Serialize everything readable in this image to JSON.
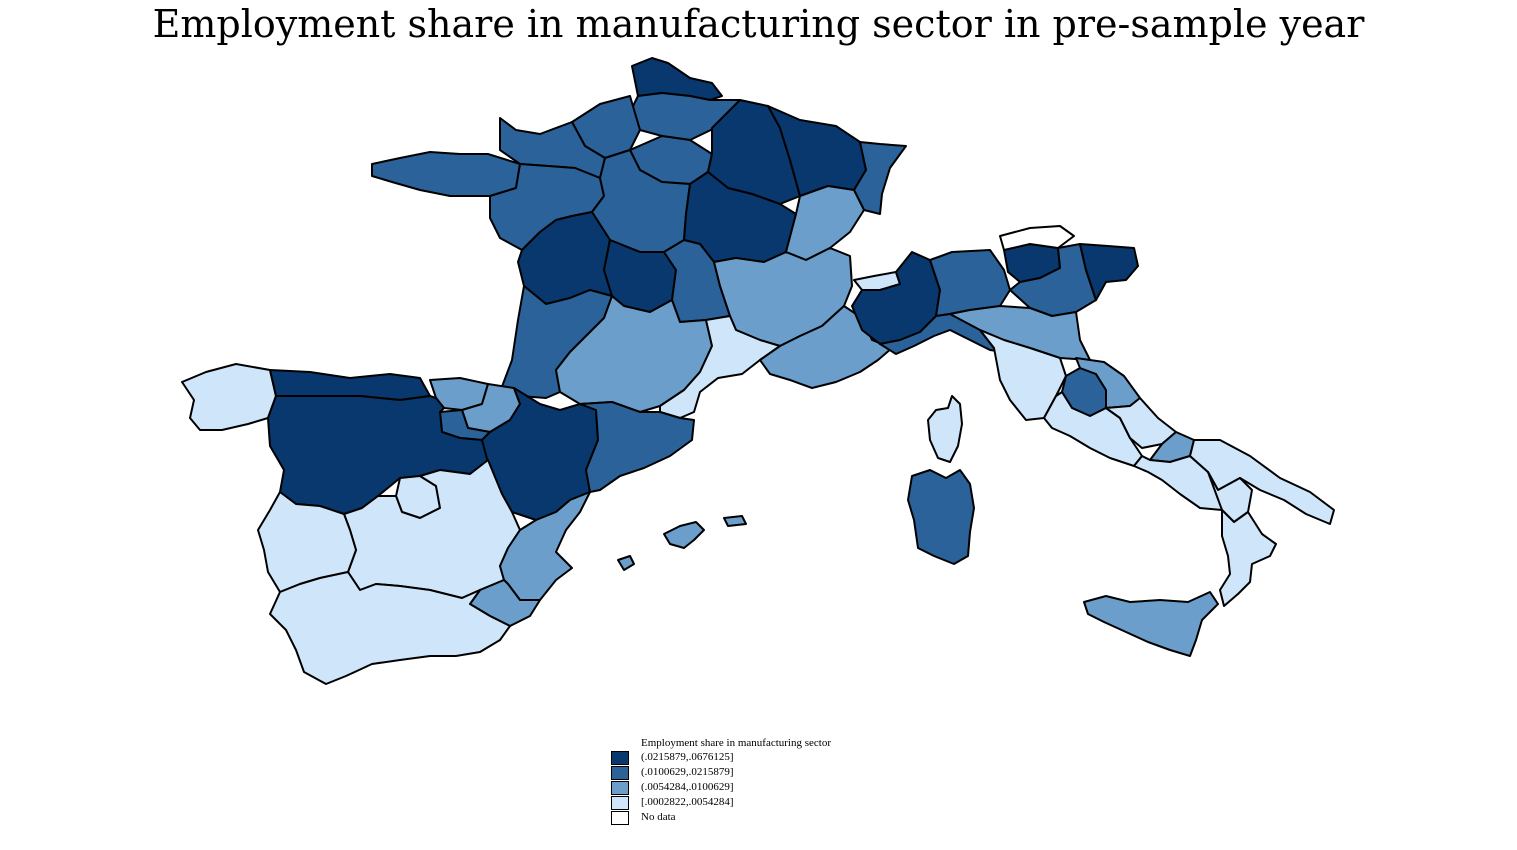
{
  "title": "Employment share in manufacturing sector in pre-sample year",
  "colors": {
    "q4": "#08386d",
    "q3": "#2a6299",
    "q2": "#6b9ecb",
    "q1": "#cfe5fa",
    "nodata": "#ffffff"
  },
  "legend": {
    "title": "Employment share in manufacturing sector",
    "items": [
      {
        "label": "(.0215879,.0676125]",
        "class": "q4"
      },
      {
        "label": "(.0100629,.0215879]",
        "class": "q3"
      },
      {
        "label": "(.0054284,.0100629]",
        "class": "q2"
      },
      {
        "label": "[.0002822,.0054284]",
        "class": "q1"
      },
      {
        "label": "No data",
        "class": "nodata"
      }
    ]
  }
}
